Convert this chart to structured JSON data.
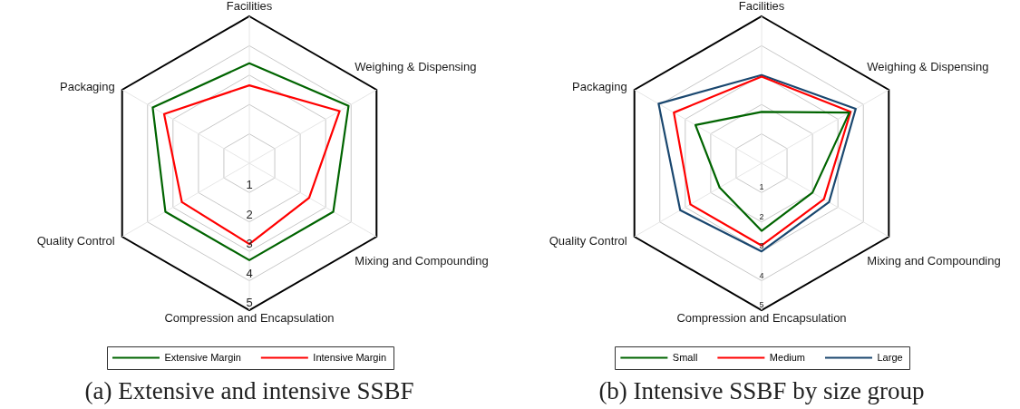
{
  "chart_data": [
    {
      "type": "radar",
      "title": "(a) Extensive and intensive SSBF",
      "categories": [
        "Facilities",
        "Weighing & Dispensing",
        "Mixing and Compounding",
        "Compression and Encapsulation",
        "Quality Control",
        "Packaging"
      ],
      "series": [
        {
          "name": "Extensive Margin",
          "color": "#006400",
          "values": [
            3.4,
            3.9,
            3.3,
            3.3,
            3.3,
            3.8
          ]
        },
        {
          "name": "Intensive Margin",
          "color": "#ff0000",
          "values": [
            2.65,
            3.55,
            2.35,
            2.75,
            2.65,
            3.35
          ]
        }
      ],
      "ylim": [
        0,
        5
      ],
      "yticks": [
        1,
        2,
        3,
        4,
        5
      ],
      "grid": true,
      "legend": "bottom"
    },
    {
      "type": "radar",
      "title": "(b) Intensive SSBF by size group",
      "categories": [
        "Facilities",
        "Weighing & Dispensing",
        "Mixing and Compounding",
        "Compression and Encapsulation",
        "Quality Control",
        "Packaging"
      ],
      "series": [
        {
          "name": "Small",
          "color": "#006400",
          "values": [
            1.75,
            3.45,
            2.0,
            2.3,
            1.65,
            2.6
          ]
        },
        {
          "name": "Medium",
          "color": "#ff0000",
          "values": [
            2.95,
            3.5,
            2.45,
            2.8,
            2.8,
            3.45
          ]
        },
        {
          "name": "Large",
          "color": "#1a476f",
          "values": [
            3.0,
            3.7,
            2.65,
            3.0,
            3.2,
            4.05
          ]
        }
      ],
      "ylim": [
        0,
        5
      ],
      "yticks": [
        1,
        2,
        3,
        4,
        5
      ],
      "grid": true,
      "legend": "bottom"
    }
  ]
}
